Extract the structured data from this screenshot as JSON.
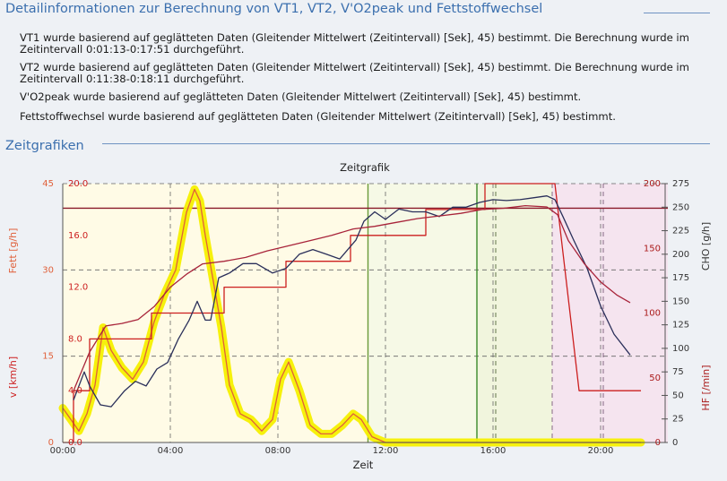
{
  "section1": {
    "title": "Detailinformationen zur Berechnung von VT1, VT2, V'O2peak und Fettstoffwechsel",
    "paragraphs": [
      "VT1 wurde basierend auf geglätteten Daten (Gleitender Mittelwert (Zeitintervall) [Sek], 45) bestimmt. Die Berechnung wurde im Zeitintervall 0:01:13-0:17:51 durchgeführt.",
      "VT2 wurde basierend auf geglätteten Daten (Gleitender Mittelwert (Zeitintervall) [Sek], 45) bestimmt. Die Berechnung wurde im Zeitintervall 0:11:38-0:18:11 durchgeführt.",
      "V'O2peak wurde basierend auf geglätteten Daten (Gleitender Mittelwert (Zeitintervall) [Sek], 45) bestimmt.",
      "Fettstoffwechsel wurde basierend auf geglätteten Daten (Gleitender Mittelwert (Zeitintervall) [Sek], 45) bestimmt."
    ]
  },
  "section2": {
    "title": "Zeitgrafiken"
  },
  "chart_data": {
    "type": "line",
    "title": "Zeitgrafik",
    "xlabel": "Zeit",
    "x_ticks": [
      "00:00",
      "04:00",
      "08:00",
      "12:00",
      "16:00",
      "20:00"
    ],
    "xlim": [
      0,
      22.5
    ],
    "axes": {
      "fett": {
        "label": "Fett [g/h]",
        "ticks": [
          "45",
          "30",
          "15",
          "0"
        ],
        "ylim": [
          0,
          45
        ],
        "color": "#e0603a"
      },
      "v": {
        "label": "v [km/h]",
        "ticks": [
          "20.0",
          "16.0",
          "12.0",
          "8.0",
          "4.0",
          "0.0"
        ],
        "ylim": [
          0,
          20
        ],
        "color": "#cc1f1f"
      },
      "cho": {
        "label": "CHO [g/h]",
        "ticks": [
          "275",
          "250",
          "225",
          "200",
          "175",
          "150",
          "125",
          "100",
          "75",
          "50",
          "25",
          "0"
        ],
        "ylim": [
          0,
          275
        ],
        "color": "#333333"
      },
      "hf": {
        "label": "HF [/min]",
        "ticks": [
          "200",
          "150",
          "100",
          "50",
          "0"
        ],
        "ylim": [
          0,
          200
        ],
        "color": "#aa1a1a"
      }
    },
    "vertical_markers": [
      {
        "x": 11.35,
        "color": "#6a9a3a",
        "style": "solid"
      },
      {
        "x": 15.4,
        "color": "#3a8a2a",
        "style": "solid"
      },
      {
        "x": 16.1,
        "color": "#556b3a",
        "style": "dashed"
      },
      {
        "x": 18.2,
        "color": "#7a5a7a",
        "style": "dashed"
      },
      {
        "x": 20.1,
        "color": "#7a5a7a",
        "style": "dashed"
      }
    ],
    "reference_line": {
      "axis": "hf",
      "y": 181,
      "color": "#8a1a2a"
    },
    "shaded_zones": [
      {
        "x0": 0,
        "x1": 11.35,
        "color": "#fffbe6"
      },
      {
        "x0": 11.35,
        "x1": 15.4,
        "color": "#f6f9e6"
      },
      {
        "x0": 15.4,
        "x1": 18.2,
        "color": "#f1f5dd"
      },
      {
        "x0": 18.2,
        "x1": 22.5,
        "color": "#f5e4ef"
      }
    ],
    "series": [
      {
        "name": "Fett",
        "axis": "fett",
        "color": "#e0603a",
        "highlight": "#f5f000",
        "x": [
          0,
          0.3,
          0.6,
          0.9,
          1.2,
          1.5,
          1.8,
          2.2,
          2.6,
          3.0,
          3.4,
          3.8,
          4.2,
          4.6,
          4.9,
          5.1,
          5.3,
          5.6,
          5.9,
          6.2,
          6.6,
          7.0,
          7.4,
          7.8,
          8.1,
          8.4,
          8.8,
          9.2,
          9.6,
          10.0,
          10.4,
          10.8,
          11.1,
          11.5,
          12,
          14,
          16,
          18,
          20,
          21.5
        ],
        "y": [
          6,
          4,
          2,
          5,
          10,
          20,
          16,
          13,
          11,
          14,
          21,
          26,
          30,
          40,
          44,
          42,
          36,
          28,
          20,
          10,
          5,
          4,
          2,
          4,
          11,
          14,
          9,
          3,
          1.5,
          1.5,
          3,
          5,
          4,
          1,
          0,
          0,
          0,
          0,
          0,
          0
        ]
      },
      {
        "name": "v",
        "axis": "v",
        "x": [
          0,
          0.4,
          0.4,
          1.0,
          1.0,
          3.3,
          3.3,
          6.0,
          6.0,
          8.3,
          8.3,
          10.7,
          10.7,
          13.5,
          13.5,
          15.7,
          15.7,
          18.3,
          19.2,
          21.5
        ],
        "y": [
          0,
          0,
          4,
          4,
          8,
          8,
          10,
          10,
          12,
          12,
          14,
          14,
          16,
          16,
          18,
          18,
          20,
          20,
          4,
          4
        ],
        "color": "#cc1f1f"
      },
      {
        "name": "CHO",
        "axis": "cho",
        "color": "#2a2f5a",
        "x": [
          0.4,
          0.8,
          1.0,
          1.4,
          1.8,
          2.3,
          2.7,
          3.1,
          3.5,
          3.9,
          4.3,
          4.7,
          5.0,
          5.3,
          5.5,
          5.8,
          6.2,
          6.7,
          7.2,
          7.8,
          8.3,
          8.8,
          9.3,
          9.8,
          10.3,
          10.9,
          11.2,
          11.6,
          12.0,
          12.5,
          13.0,
          13.5,
          14.0,
          14.5,
          15.0,
          15.5,
          16.0,
          16.5,
          17.0,
          17.5,
          18.0,
          18.3,
          18.6,
          19.0,
          19.5,
          20.0,
          20.5,
          21.1
        ],
        "y": [
          45,
          75,
          60,
          40,
          38,
          55,
          65,
          60,
          78,
          85,
          110,
          130,
          150,
          130,
          130,
          175,
          180,
          190,
          190,
          180,
          185,
          200,
          205,
          200,
          195,
          215,
          235,
          245,
          237,
          248,
          245,
          245,
          240,
          250,
          250,
          255,
          258,
          257,
          258,
          260,
          262,
          258,
          240,
          215,
          185,
          145,
          115,
          93
        ]
      },
      {
        "name": "HF",
        "axis": "hf",
        "color": "#a8243a",
        "x": [
          0.4,
          1.0,
          1.6,
          2.2,
          2.8,
          3.4,
          4.0,
          4.6,
          5.2,
          6.0,
          6.8,
          7.6,
          8.4,
          9.2,
          10.0,
          10.8,
          11.6,
          12.4,
          13.2,
          14.0,
          14.8,
          15.6,
          16.4,
          17.2,
          18.0,
          18.4,
          18.8,
          19.4,
          20.0,
          20.6,
          21.1
        ],
        "y": [
          40,
          70,
          90,
          92,
          95,
          105,
          120,
          130,
          138,
          140,
          143,
          148,
          152,
          156,
          160,
          165,
          167,
          170,
          173,
          175,
          177,
          180,
          181,
          183,
          182,
          176,
          156,
          138,
          124,
          114,
          108
        ]
      }
    ]
  }
}
